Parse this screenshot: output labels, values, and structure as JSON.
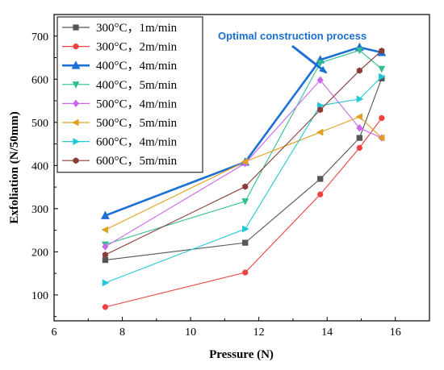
{
  "chart_data": {
    "type": "line",
    "title": "",
    "xlabel": "Pressure (N)",
    "ylabel": "Exfoliation (N/50mm)",
    "xlim": [
      6,
      17
    ],
    "ylim": [
      40,
      750
    ],
    "xticks": [
      6,
      8,
      10,
      12,
      14,
      16
    ],
    "yticks": [
      100,
      200,
      300,
      400,
      500,
      600,
      700
    ],
    "grid": false,
    "legend_position": "top-left",
    "annotation": {
      "text": "Optimal construction process",
      "color": "#1a6fd0",
      "arrow_to": [
        13.9,
        643
      ]
    },
    "highlight_series": "400°C，4m/min",
    "series": [
      {
        "name": "300°C，1m/min",
        "color": "#555555",
        "marker": "square",
        "x": [
          7.5,
          11.6,
          13.8,
          14.95,
          15.6
        ],
        "y": [
          181,
          221,
          369,
          464,
          602
        ]
      },
      {
        "name": "300°C，2m/min",
        "color": "#f04040",
        "marker": "circle",
        "x": [
          7.5,
          11.6,
          13.8,
          14.95,
          15.6
        ],
        "y": [
          72,
          152,
          333,
          441,
          510
        ]
      },
      {
        "name": "400°C，4m/min",
        "color": "#1c6fd4",
        "marker": "triangle-up",
        "x": [
          7.5,
          11.6,
          13.8,
          14.95,
          15.6
        ],
        "y": [
          284,
          408,
          645,
          674,
          662
        ]
      },
      {
        "name": "400°C，5m/min",
        "color": "#2fbf8f",
        "marker": "triangle-down",
        "x": [
          7.5,
          11.6,
          13.8,
          14.95,
          15.6
        ],
        "y": [
          217,
          317,
          638,
          667,
          624
        ]
      },
      {
        "name": "500°C，4m/min",
        "color": "#cc66ee",
        "marker": "diamond",
        "x": [
          7.5,
          11.6,
          13.8,
          14.95,
          15.6
        ],
        "y": [
          212,
          405,
          598,
          487,
          464
        ]
      },
      {
        "name": "500°C，5m/min",
        "color": "#e0a020",
        "marker": "triangle-left",
        "x": [
          7.5,
          11.6,
          13.8,
          14.95,
          15.6
        ],
        "y": [
          251,
          409,
          477,
          513,
          464
        ]
      },
      {
        "name": "600°C，4m/min",
        "color": "#20c8d8",
        "marker": "triangle-right",
        "x": [
          7.5,
          11.6,
          13.8,
          14.95,
          15.6
        ],
        "y": [
          128,
          253,
          539,
          554,
          606
        ]
      },
      {
        "name": "600°C，5m/min",
        "color": "#8a3b35",
        "marker": "hexagon",
        "x": [
          7.5,
          11.6,
          13.8,
          14.95,
          15.6
        ],
        "y": [
          193,
          351,
          529,
          620,
          666
        ]
      }
    ]
  }
}
